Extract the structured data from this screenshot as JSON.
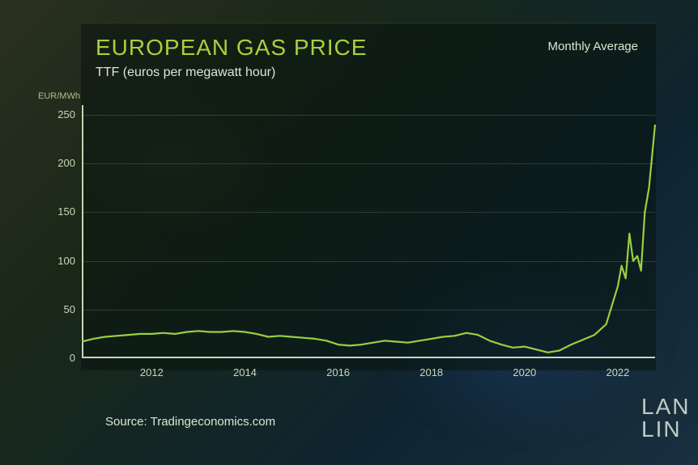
{
  "chart": {
    "type": "line",
    "title": "EUROPEAN GAS PRICE",
    "right_label": "Monthly Average",
    "subtitle": "TTF (euros per megawatt hour)",
    "y_axis_unit": "EUR/MWh",
    "source": "Source: Tradingeconomics.com",
    "watermark": "LAN\nLIN",
    "title_color": "#a8d040",
    "text_color": "#d8e8d0",
    "tick_color": "#c8d8b8",
    "line_color": "#9ad040",
    "line_width": 2.2,
    "panel_bg": "rgba(10,20,15,0.55)",
    "grid_color": "rgba(200,220,190,0.18)",
    "title_fontsize": 28,
    "subtitle_fontsize": 16,
    "tick_fontsize": 13,
    "ylim": [
      0,
      260
    ],
    "yticks": [
      0,
      50,
      100,
      150,
      200,
      250
    ],
    "xlim": [
      2010.5,
      2022.8
    ],
    "xticks": [
      2012,
      2014,
      2016,
      2018,
      2020,
      2022
    ],
    "series": {
      "x": [
        2010.5,
        2010.75,
        2011,
        2011.25,
        2011.5,
        2011.75,
        2012,
        2012.25,
        2012.5,
        2012.75,
        2013,
        2013.25,
        2013.5,
        2013.75,
        2014,
        2014.25,
        2014.5,
        2014.75,
        2015,
        2015.25,
        2015.5,
        2015.75,
        2016,
        2016.25,
        2016.5,
        2016.75,
        2017,
        2017.25,
        2017.5,
        2017.75,
        2018,
        2018.25,
        2018.5,
        2018.75,
        2019,
        2019.25,
        2019.5,
        2019.75,
        2020,
        2020.25,
        2020.5,
        2020.75,
        2021,
        2021.25,
        2021.5,
        2021.75,
        2022,
        2022.08,
        2022.17,
        2022.25,
        2022.33,
        2022.42,
        2022.5,
        2022.58,
        2022.67,
        2022.8
      ],
      "y": [
        17,
        20,
        22,
        23,
        24,
        25,
        25,
        26,
        25,
        27,
        28,
        27,
        27,
        28,
        27,
        25,
        22,
        23,
        22,
        21,
        20,
        18,
        14,
        13,
        14,
        16,
        18,
        17,
        16,
        18,
        20,
        22,
        23,
        26,
        24,
        18,
        14,
        11,
        12,
        9,
        6,
        8,
        14,
        19,
        24,
        35,
        74,
        95,
        82,
        128,
        100,
        105,
        90,
        150,
        175,
        240
      ]
    }
  }
}
